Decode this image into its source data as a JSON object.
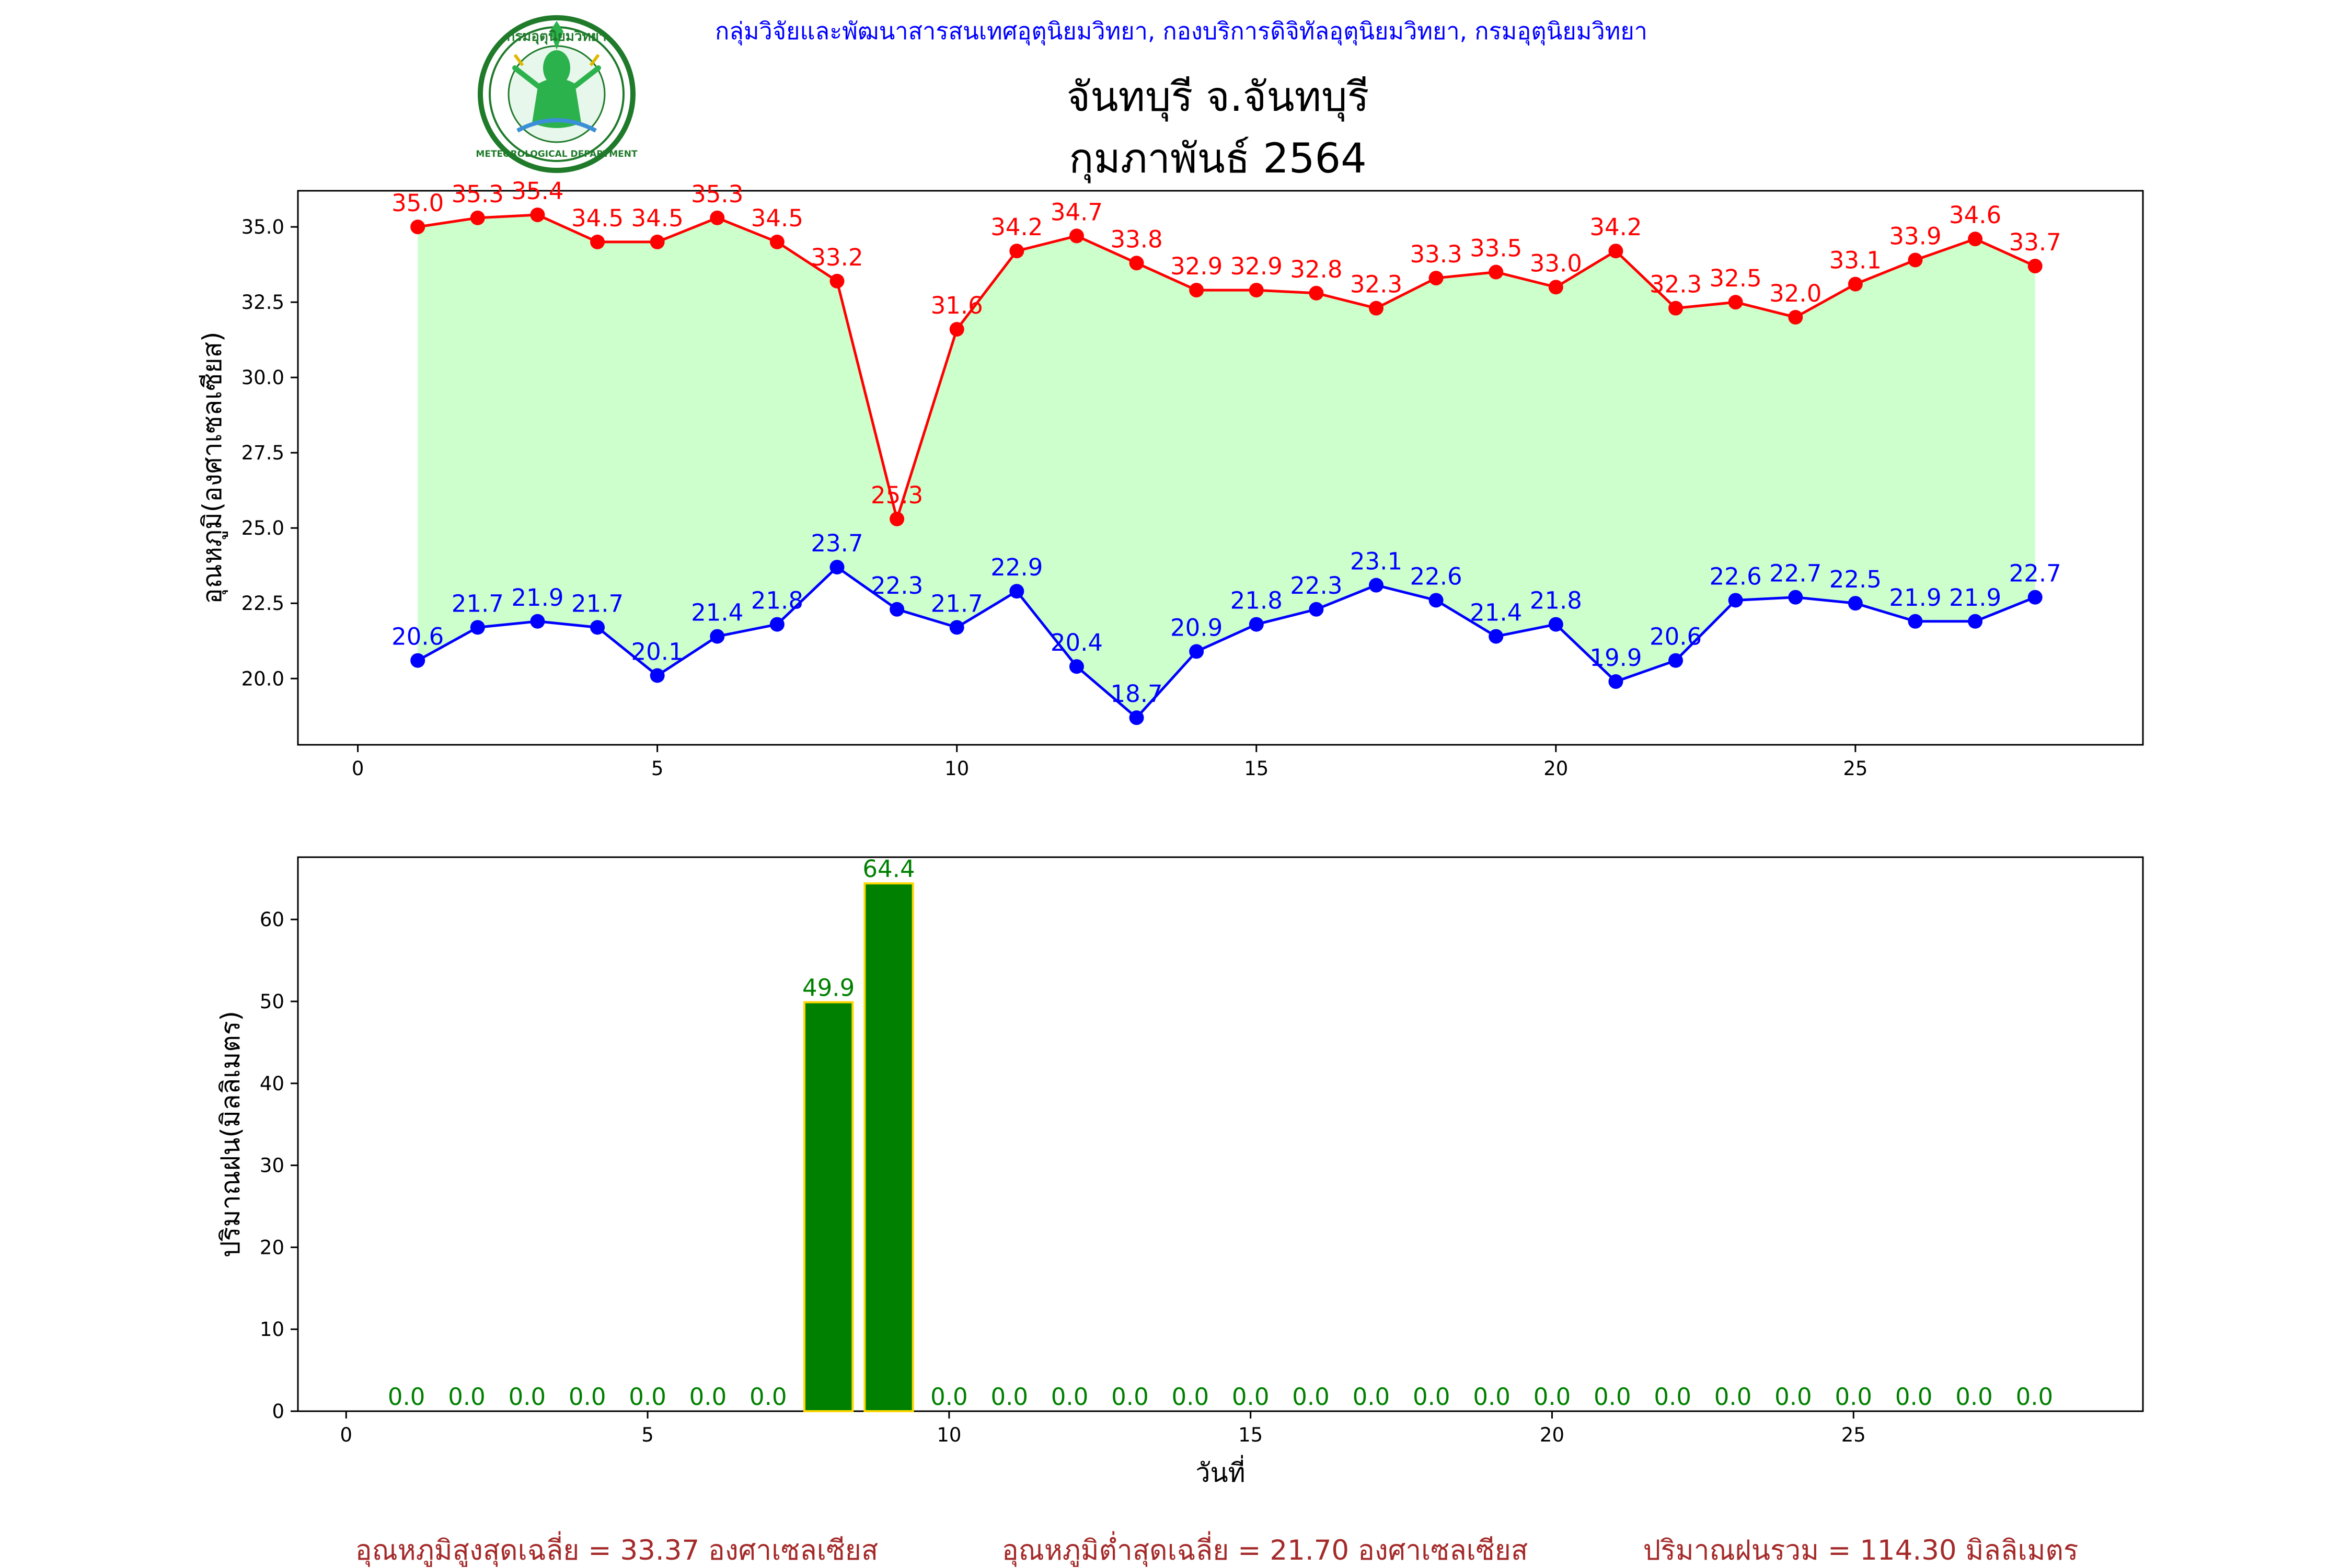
{
  "header": {
    "agency": "กลุ่มวิจัยและพัฒนาสารสนเทศอุตุนิยมวิทยา, กองบริการดิจิทัลอุตุนิยมวิทยา, กรมอุตุนิยมวิทยา",
    "station": "จันทบุรี จ.จันทบุรี",
    "month": "กุมภาพันธ์ 2564"
  },
  "logo": {
    "top_text": "กรมอุตุนิยมวิทยา",
    "bottom_text": "METEOROLOGICAL DEPARTMENT",
    "ring_color": "#1f7a2a",
    "figure_color": "#2bb24c"
  },
  "chart_data": [
    {
      "type": "line",
      "ylabel": "อุณหภูมิ(องศาเซลเซียส)",
      "xlabel": "",
      "xlim": [
        -1,
        29.8
      ],
      "ylim": [
        17.8,
        36.2
      ],
      "xticks": [
        0,
        5,
        10,
        15,
        20,
        25
      ],
      "yticks": [
        20.0,
        22.5,
        25.0,
        27.5,
        30.0,
        32.5,
        35.0
      ],
      "fill_between_color": "#ccffcc",
      "x": [
        1,
        2,
        3,
        4,
        5,
        6,
        7,
        8,
        9,
        10,
        11,
        12,
        13,
        14,
        15,
        16,
        17,
        18,
        19,
        20,
        21,
        22,
        23,
        24,
        25,
        26,
        27,
        28
      ],
      "series": [
        {
          "key": "max",
          "color": "#ff0000",
          "values": [
            35.0,
            35.3,
            35.4,
            34.5,
            34.5,
            35.3,
            34.5,
            33.2,
            25.3,
            31.6,
            34.2,
            34.7,
            33.8,
            32.9,
            32.9,
            32.8,
            32.3,
            33.3,
            33.5,
            33.0,
            34.2,
            32.3,
            32.5,
            32.0,
            33.1,
            33.9,
            34.6,
            33.7
          ]
        },
        {
          "key": "min",
          "color": "#0000ff",
          "values": [
            20.6,
            21.7,
            21.9,
            21.7,
            20.1,
            21.4,
            21.8,
            23.7,
            22.3,
            21.7,
            22.9,
            20.4,
            18.7,
            20.9,
            21.8,
            22.3,
            23.1,
            22.6,
            21.4,
            21.8,
            19.9,
            20.6,
            22.6,
            22.7,
            22.5,
            21.9,
            21.9,
            22.7
          ]
        }
      ]
    },
    {
      "type": "bar",
      "ylabel": "ปริมาณฝน(มิลลิเมตร)",
      "xlabel": "วันที่",
      "xlim": [
        -0.8,
        29.8
      ],
      "ylim": [
        0,
        67.6
      ],
      "xticks": [
        0,
        5,
        10,
        15,
        20,
        25
      ],
      "yticks": [
        0,
        10,
        20,
        30,
        40,
        50,
        60
      ],
      "bar_color": "#008000",
      "bar_edge_color": "#ffd700",
      "x": [
        1,
        2,
        3,
        4,
        5,
        6,
        7,
        8,
        9,
        10,
        11,
        12,
        13,
        14,
        15,
        16,
        17,
        18,
        19,
        20,
        21,
        22,
        23,
        24,
        25,
        26,
        27,
        28
      ],
      "values": [
        0.0,
        0.0,
        0.0,
        0.0,
        0.0,
        0.0,
        0.0,
        49.9,
        64.4,
        0.0,
        0.0,
        0.0,
        0.0,
        0.0,
        0.0,
        0.0,
        0.0,
        0.0,
        0.0,
        0.0,
        0.0,
        0.0,
        0.0,
        0.0,
        0.0,
        0.0,
        0.0,
        0.0
      ]
    }
  ],
  "summary": {
    "avg_max": "อุณหภูมิสูงสุดเฉลี่ย = 33.37 องศาเซลเซียส",
    "avg_min": "อุณหภูมิต่ำสุดเฉลี่ย = 21.70 องศาเซลเซียส",
    "total_rain": "ปริมาณฝนรวม = 114.30 มิลลิเมตร"
  }
}
